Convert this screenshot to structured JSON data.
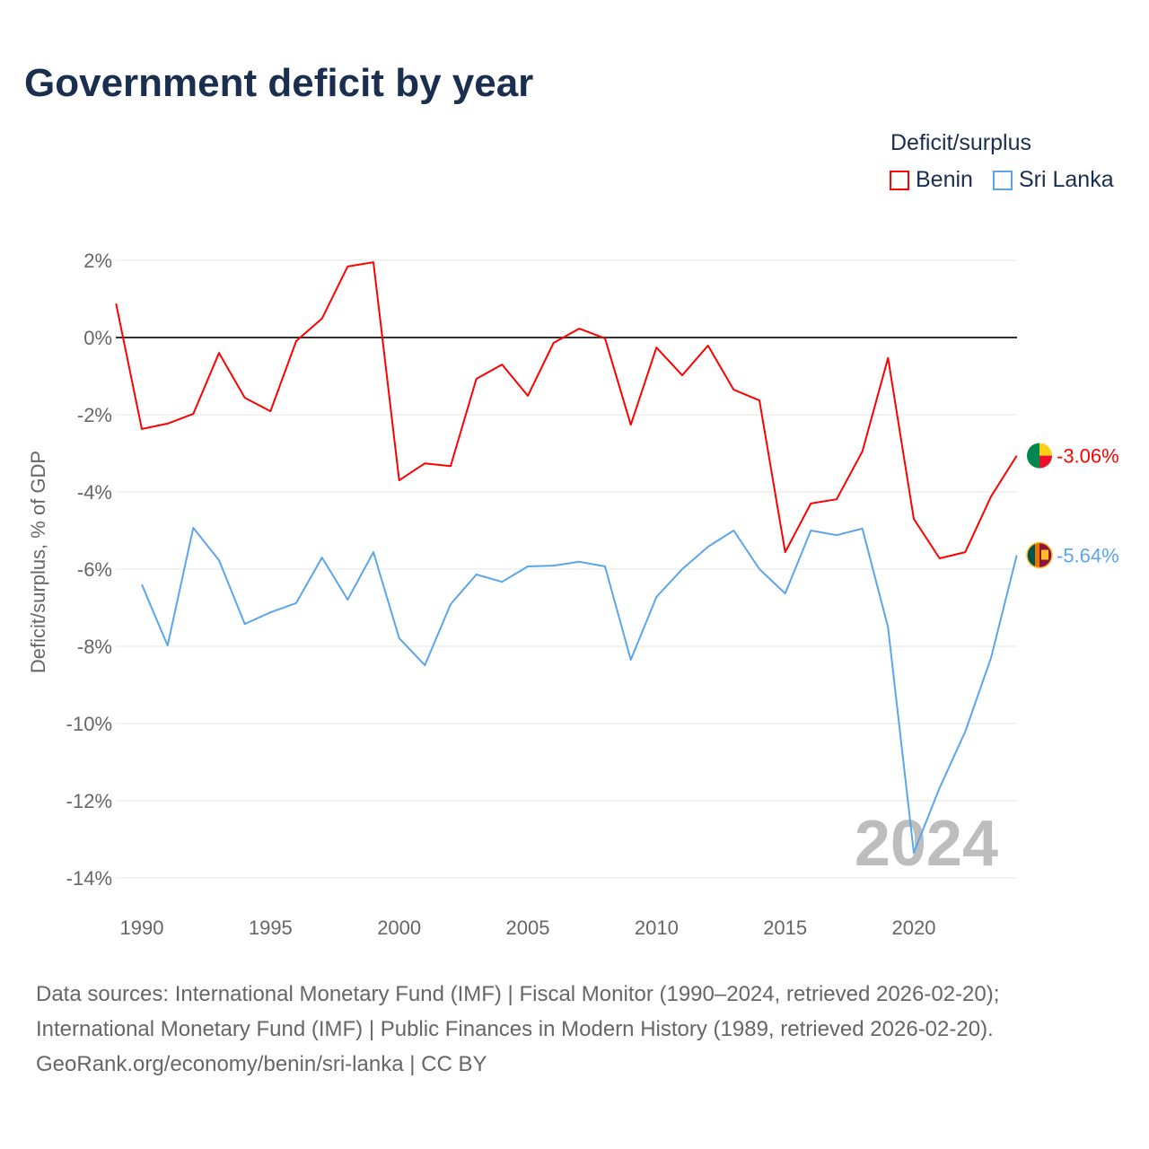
{
  "chart_data": {
    "type": "line",
    "title": "Government deficit by year",
    "ylabel": "Deficit/surplus, % of GDP",
    "xlabel": "",
    "ylim": [
      -14,
      2
    ],
    "xlim": [
      1989,
      2024
    ],
    "y_ticks": [
      "2%",
      "0%",
      "-2%",
      "-4%",
      "-6%",
      "-8%",
      "-10%",
      "-12%",
      "-14%"
    ],
    "y_tick_values": [
      2,
      0,
      -2,
      -4,
      -6,
      -8,
      -10,
      -12,
      -14
    ],
    "x_ticks": [
      "1990",
      "1995",
      "2000",
      "2005",
      "2010",
      "2015",
      "2020"
    ],
    "x_tick_values": [
      1990,
      1995,
      2000,
      2005,
      2010,
      2015,
      2020
    ],
    "grid": true,
    "legend": {
      "title": "Deficit/surplus",
      "placement": "top-right"
    },
    "watermark_year": "2024",
    "series": [
      {
        "name": "Benin",
        "color": "#ff0000",
        "end_label": "-3.06%",
        "x": [
          1989,
          1990,
          1991,
          1992,
          1993,
          1994,
          1995,
          1996,
          1997,
          1998,
          1999,
          2000,
          2001,
          2002,
          2003,
          2004,
          2005,
          2006,
          2007,
          2008,
          2009,
          2010,
          2011,
          2012,
          2013,
          2014,
          2015,
          2016,
          2017,
          2018,
          2019,
          2020,
          2021,
          2022,
          2023,
          2024
        ],
        "values": [
          0.88,
          -2.37,
          -2.23,
          -1.98,
          -0.4,
          -1.56,
          -1.91,
          -0.09,
          0.49,
          1.84,
          1.95,
          -3.7,
          -3.26,
          -3.33,
          -1.07,
          -0.7,
          -1.51,
          -0.14,
          0.23,
          -0.02,
          -2.26,
          -0.26,
          -0.98,
          -0.21,
          -1.35,
          -1.63,
          -5.56,
          -4.3,
          -4.19,
          -2.95,
          -0.53,
          -4.7,
          -5.72,
          -5.56,
          -4.12,
          -3.06
        ]
      },
      {
        "name": "Sri Lanka",
        "color": "#5aa5ec",
        "end_label": "-5.64%",
        "x": [
          1990,
          1991,
          1992,
          1993,
          1994,
          1995,
          1996,
          1997,
          1998,
          1999,
          2000,
          2001,
          2002,
          2003,
          2004,
          2005,
          2006,
          2007,
          2008,
          2009,
          2010,
          2011,
          2012,
          2013,
          2014,
          2015,
          2016,
          2017,
          2018,
          2019,
          2020,
          2021,
          2022,
          2023,
          2024
        ],
        "values": [
          -6.4,
          -7.98,
          -4.93,
          -5.77,
          -7.42,
          -7.12,
          -6.88,
          -5.7,
          -6.79,
          -5.56,
          -7.79,
          -8.49,
          -6.91,
          -6.14,
          -6.33,
          -5.93,
          -5.91,
          -5.81,
          -5.93,
          -8.35,
          -6.72,
          -6.0,
          -5.42,
          -5.0,
          -6.0,
          -6.63,
          -5.0,
          -5.12,
          -4.95,
          -7.51,
          -13.35,
          -11.67,
          -10.21,
          -8.3,
          -5.64
        ]
      }
    ]
  },
  "footer": {
    "line1": "Data sources: International Monetary Fund (IMF) | Fiscal Monitor (1990–2024, retrieved 2026-02-20);",
    "line2": "International Monetary Fund (IMF) | Public Finances in Modern History (1989, retrieved 2026-02-20).",
    "line3": "GeoRank.org/economy/benin/sri-lanka | CC BY"
  }
}
